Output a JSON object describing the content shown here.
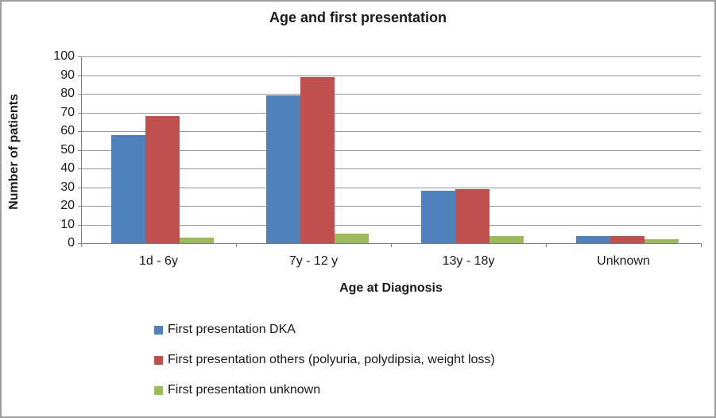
{
  "chart_data": {
    "type": "bar",
    "title": "Age and first presentation",
    "xlabel": "Age at Diagnosis",
    "ylabel": "Number of patients",
    "categories": [
      "1d - 6y",
      "7y - 12 y",
      "13y - 18y",
      "Unknown"
    ],
    "series": [
      {
        "name": "First presentation DKA",
        "color": "#4F81BD",
        "values": [
          58,
          79,
          28,
          4
        ]
      },
      {
        "name": "First presentation others (polyuria, polydipsia, weight loss)",
        "color": "#C0504D",
        "values": [
          68,
          89,
          29,
          4
        ]
      },
      {
        "name": "First presentation unknown",
        "color": "#9BBB59",
        "values": [
          3,
          5,
          4,
          2
        ]
      }
    ],
    "ylim": [
      0,
      100
    ],
    "ytick_step": 10,
    "ytick_labels": [
      "0",
      "10",
      "20",
      "30",
      "40",
      "50",
      "60",
      "70",
      "80",
      "90",
      "100"
    ],
    "grid": true,
    "legend_position": "bottom-left",
    "axis_color": "#7f7f7f",
    "gridline_color": "#9a9a9a",
    "background_color": "#ffffff",
    "border_color": "#9e9e9e"
  }
}
